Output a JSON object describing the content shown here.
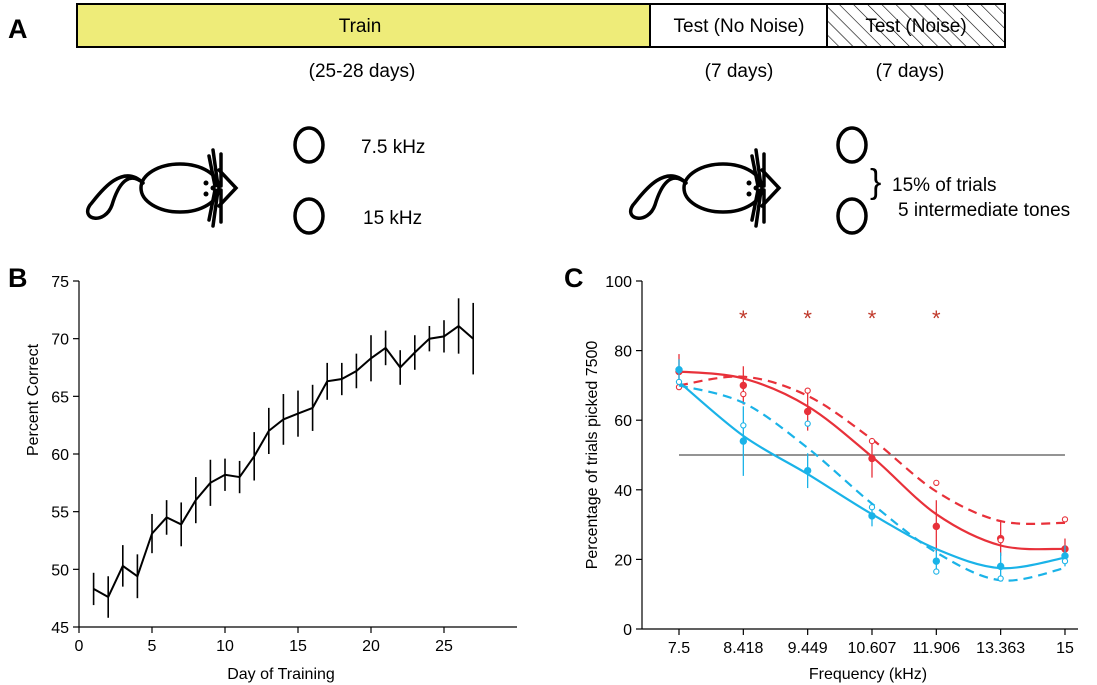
{
  "panelA": {
    "panel_label": "A",
    "segments": [
      {
        "label": "Train",
        "duration": "(25-28 days)",
        "fill": "#eeec79"
      },
      {
        "label": "Test (No Noise)",
        "duration": "(7 days)",
        "fill": "#ffffff"
      },
      {
        "label": "Test (Noise)",
        "duration": "(7 days)",
        "fill": "hatched"
      }
    ],
    "training_ports": [
      "7.5 kHz",
      "15 kHz"
    ],
    "testing_note": [
      "15% of trials",
      "5 intermediate tones"
    ],
    "brace_symbol": "}"
  },
  "colors": {
    "red": "#e8313a",
    "blue": "#1ab3e8",
    "star": "#c0392b",
    "black": "#000000",
    "train_fill": "#eeec79"
  },
  "chart_data": [
    {
      "panel": "B",
      "panel_label": "B",
      "type": "line",
      "xlabel": "Day of Training",
      "ylabel": "Percent Correct",
      "xlim": [
        0,
        30
      ],
      "ylim": [
        45,
        75
      ],
      "xticks": [
        0,
        5,
        10,
        15,
        20,
        25
      ],
      "yticks": [
        45,
        50,
        55,
        60,
        65,
        70,
        75
      ],
      "series": [
        {
          "x": [
            1,
            2,
            3,
            4,
            5,
            6,
            7,
            8,
            9,
            10,
            11,
            12,
            13,
            14,
            15,
            16,
            17,
            18,
            19,
            20,
            21,
            22,
            23,
            24,
            25,
            26,
            27
          ],
          "y": [
            48.3,
            47.6,
            50.3,
            49.4,
            53.1,
            54.5,
            53.9,
            56.0,
            57.5,
            58.2,
            58.0,
            59.8,
            62.0,
            63.0,
            63.5,
            64.0,
            66.3,
            66.5,
            67.2,
            68.3,
            69.2,
            67.5,
            68.8,
            70.0,
            70.2,
            71.1,
            70.0
          ],
          "err": [
            1.4,
            1.8,
            1.8,
            1.9,
            1.7,
            1.5,
            1.9,
            2.0,
            2.0,
            1.4,
            1.4,
            2.1,
            2.0,
            2.2,
            2.0,
            2.0,
            1.6,
            1.4,
            1.5,
            2.0,
            1.5,
            1.5,
            1.5,
            1.1,
            1.4,
            2.4,
            3.1
          ]
        }
      ]
    },
    {
      "panel": "C",
      "panel_label": "C",
      "type": "scatter",
      "xlabel": "Frequency (kHz)",
      "ylabel": "Percentage of trials picked 7500",
      "ylim": [
        0,
        100
      ],
      "yticks": [
        0,
        20,
        40,
        60,
        80,
        100
      ],
      "categories": [
        "7.5",
        "8.418",
        "9.449",
        "10.607",
        "11.906",
        "13.363",
        "15"
      ],
      "reference_line": 50,
      "significance_markers": {
        "symbol": "*",
        "at_categories": [
          "8.418",
          "9.449",
          "10.607",
          "11.906"
        ]
      },
      "series": [
        {
          "color": "red",
          "marker": "filled",
          "fit": "solid",
          "values": [
            74.0,
            70.0,
            62.5,
            49.0,
            29.5,
            26.0,
            23.0
          ],
          "err": [
            5.0,
            5.5,
            5.5,
            5.5,
            7.5,
            5.0,
            3.0
          ],
          "fit_values": [
            74.0,
            72.0,
            64.0,
            49.5,
            33.0,
            24.0,
            23.0
          ]
        },
        {
          "color": "red",
          "marker": "open",
          "fit": "dashed",
          "values": [
            69.5,
            67.5,
            68.5,
            54.0,
            42.0,
            25.5,
            31.5
          ],
          "fit_values": [
            70.0,
            72.5,
            67.0,
            54.5,
            39.5,
            31.0,
            30.5
          ]
        },
        {
          "color": "blue",
          "marker": "filled",
          "fit": "solid",
          "values": [
            74.5,
            54.0,
            45.5,
            32.5,
            19.5,
            18.0,
            21.0
          ],
          "err": [
            3.0,
            10.0,
            5.0,
            3.0,
            3.0,
            4.0,
            3.0
          ],
          "fit_values": [
            71.0,
            55.5,
            44.5,
            33.0,
            23.0,
            17.5,
            20.5
          ]
        },
        {
          "color": "blue",
          "marker": "open",
          "fit": "dashed",
          "values": [
            71.0,
            58.5,
            59.0,
            35.0,
            16.5,
            14.5,
            19.5
          ],
          "fit_values": [
            70.0,
            65.0,
            52.0,
            36.0,
            22.0,
            14.0,
            17.5
          ]
        }
      ]
    }
  ]
}
